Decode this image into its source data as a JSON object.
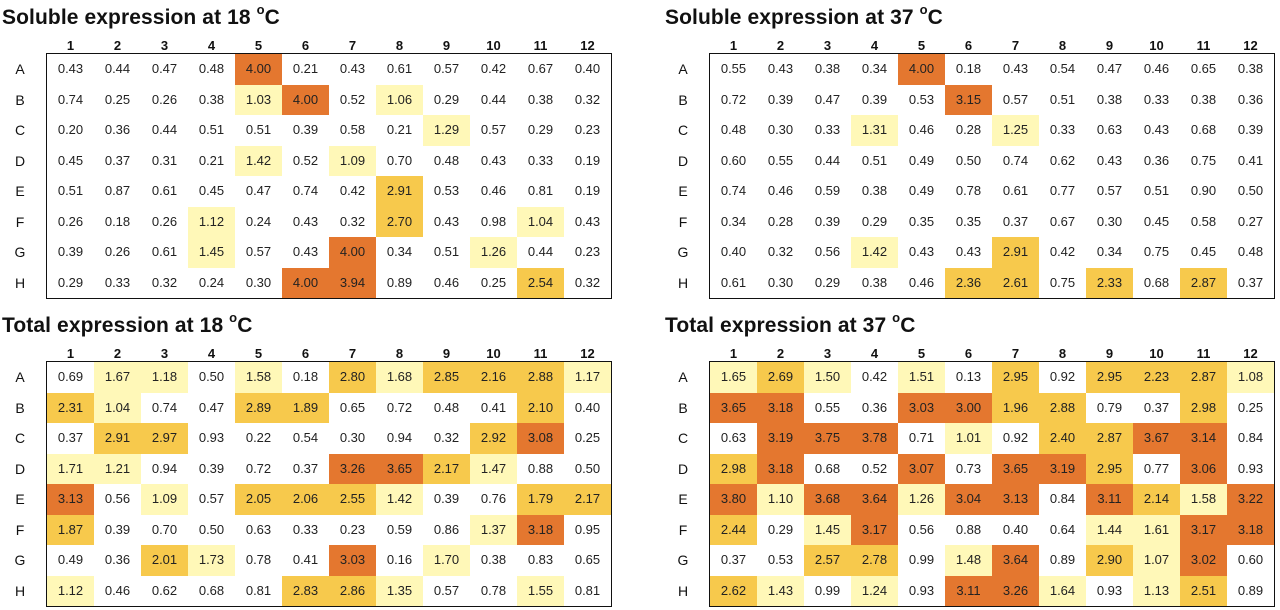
{
  "chart_data": [
    {
      "type": "heatmap",
      "title_main": "Soluble expression at 18",
      "title_deg": "o",
      "title_unit": "C",
      "columns": [
        "1",
        "2",
        "3",
        "4",
        "5",
        "6",
        "7",
        "8",
        "9",
        "10",
        "11",
        "12"
      ],
      "rows": [
        "A",
        "B",
        "C",
        "D",
        "E",
        "F",
        "G",
        "H"
      ],
      "values": [
        [
          "0.43",
          "0.44",
          "0.47",
          "0.48",
          "4.00",
          "0.21",
          "0.43",
          "0.61",
          "0.57",
          "0.42",
          "0.67",
          "0.40"
        ],
        [
          "0.74",
          "0.25",
          "0.26",
          "0.38",
          "1.03",
          "4.00",
          "0.52",
          "1.06",
          "0.29",
          "0.44",
          "0.38",
          "0.32"
        ],
        [
          "0.20",
          "0.36",
          "0.44",
          "0.51",
          "0.51",
          "0.39",
          "0.58",
          "0.21",
          "1.29",
          "0.57",
          "0.29",
          "0.23"
        ],
        [
          "0.45",
          "0.37",
          "0.31",
          "0.21",
          "1.42",
          "0.52",
          "1.09",
          "0.70",
          "0.48",
          "0.43",
          "0.33",
          "0.19"
        ],
        [
          "0.51",
          "0.87",
          "0.61",
          "0.45",
          "0.47",
          "0.74",
          "0.42",
          "2.91",
          "0.53",
          "0.46",
          "0.81",
          "0.19"
        ],
        [
          "0.26",
          "0.18",
          "0.26",
          "1.12",
          "0.24",
          "0.43",
          "0.32",
          "2.70",
          "0.43",
          "0.98",
          "1.04",
          "0.43"
        ],
        [
          "0.39",
          "0.26",
          "0.61",
          "1.45",
          "0.57",
          "0.43",
          "4.00",
          "0.34",
          "0.51",
          "1.26",
          "0.44",
          "0.23"
        ],
        [
          "0.29",
          "0.33",
          "0.32",
          "0.24",
          "0.30",
          "4.00",
          "3.94",
          "0.89",
          "0.46",
          "0.25",
          "2.54",
          "0.32"
        ]
      ]
    },
    {
      "type": "heatmap",
      "title_main": "Soluble expression at 37",
      "title_deg": "o",
      "title_unit": "C",
      "columns": [
        "1",
        "2",
        "3",
        "4",
        "5",
        "6",
        "7",
        "8",
        "9",
        "10",
        "11",
        "12"
      ],
      "rows": [
        "A",
        "B",
        "C",
        "D",
        "E",
        "F",
        "G",
        "H"
      ],
      "values": [
        [
          "0.55",
          "0.43",
          "0.38",
          "0.34",
          "4.00",
          "0.18",
          "0.43",
          "0.54",
          "0.47",
          "0.46",
          "0.65",
          "0.38"
        ],
        [
          "0.72",
          "0.39",
          "0.47",
          "0.39",
          "0.53",
          "3.15",
          "0.57",
          "0.51",
          "0.38",
          "0.33",
          "0.38",
          "0.36"
        ],
        [
          "0.48",
          "0.30",
          "0.33",
          "1.31",
          "0.46",
          "0.28",
          "1.25",
          "0.33",
          "0.63",
          "0.43",
          "0.68",
          "0.39"
        ],
        [
          "0.60",
          "0.55",
          "0.44",
          "0.51",
          "0.49",
          "0.50",
          "0.74",
          "0.62",
          "0.43",
          "0.36",
          "0.75",
          "0.41"
        ],
        [
          "0.74",
          "0.46",
          "0.59",
          "0.38",
          "0.49",
          "0.78",
          "0.61",
          "0.77",
          "0.57",
          "0.51",
          "0.90",
          "0.50"
        ],
        [
          "0.34",
          "0.28",
          "0.39",
          "0.29",
          "0.35",
          "0.35",
          "0.37",
          "0.67",
          "0.30",
          "0.45",
          "0.58",
          "0.27"
        ],
        [
          "0.40",
          "0.32",
          "0.56",
          "1.42",
          "0.43",
          "0.43",
          "2.91",
          "0.42",
          "0.34",
          "0.75",
          "0.45",
          "0.48"
        ],
        [
          "0.61",
          "0.30",
          "0.29",
          "0.38",
          "0.46",
          "2.36",
          "2.61",
          "0.75",
          "2.33",
          "0.68",
          "2.87",
          "0.37"
        ]
      ]
    },
    {
      "type": "heatmap",
      "title_main": "Total expression at 18",
      "title_deg": "o",
      "title_unit": "C",
      "columns": [
        "1",
        "2",
        "3",
        "4",
        "5",
        "6",
        "7",
        "8",
        "9",
        "10",
        "11",
        "12"
      ],
      "rows": [
        "A",
        "B",
        "C",
        "D",
        "E",
        "F",
        "G",
        "H"
      ],
      "values": [
        [
          "0.69",
          "1.67",
          "1.18",
          "0.50",
          "1.58",
          "0.18",
          "2.80",
          "1.68",
          "2.85",
          "2.16",
          "2.88",
          "1.17"
        ],
        [
          "2.31",
          "1.04",
          "0.74",
          "0.47",
          "2.89",
          "1.89",
          "0.65",
          "0.72",
          "0.48",
          "0.41",
          "2.10",
          "0.40"
        ],
        [
          "0.37",
          "2.91",
          "2.97",
          "0.93",
          "0.22",
          "0.54",
          "0.30",
          "0.94",
          "0.32",
          "2.92",
          "3.08",
          "0.25"
        ],
        [
          "1.71",
          "1.21",
          "0.94",
          "0.39",
          "0.72",
          "0.37",
          "3.26",
          "3.65",
          "2.17",
          "1.47",
          "0.88",
          "0.50"
        ],
        [
          "3.13",
          "0.56",
          "1.09",
          "0.57",
          "2.05",
          "2.06",
          "2.55",
          "1.42",
          "0.39",
          "0.76",
          "1.79",
          "2.17"
        ],
        [
          "1.87",
          "0.39",
          "0.70",
          "0.50",
          "0.63",
          "0.33",
          "0.23",
          "0.59",
          "0.86",
          "1.37",
          "3.18",
          "0.95"
        ],
        [
          "0.49",
          "0.36",
          "2.01",
          "1.73",
          "0.78",
          "0.41",
          "3.03",
          "0.16",
          "1.70",
          "0.38",
          "0.83",
          "0.65"
        ],
        [
          "1.12",
          "0.46",
          "0.62",
          "0.68",
          "0.81",
          "2.83",
          "2.86",
          "1.35",
          "0.57",
          "0.78",
          "1.55",
          "0.81"
        ]
      ]
    },
    {
      "type": "heatmap",
      "title_main": "Total expression at 37",
      "title_deg": "o",
      "title_unit": "C",
      "columns": [
        "1",
        "2",
        "3",
        "4",
        "5",
        "6",
        "7",
        "8",
        "9",
        "10",
        "11",
        "12"
      ],
      "rows": [
        "A",
        "B",
        "C",
        "D",
        "E",
        "F",
        "G",
        "H"
      ],
      "values": [
        [
          "1.65",
          "2.69",
          "1.50",
          "0.42",
          "1.51",
          "0.13",
          "2.95",
          "0.92",
          "2.95",
          "2.23",
          "2.87",
          "1.08"
        ],
        [
          "3.65",
          "3.18",
          "0.55",
          "0.36",
          "3.03",
          "3.00",
          "1.96",
          "2.88",
          "0.79",
          "0.37",
          "2.98",
          "0.25"
        ],
        [
          "0.63",
          "3.19",
          "3.75",
          "3.78",
          "0.71",
          "1.01",
          "0.92",
          "2.40",
          "2.87",
          "3.67",
          "3.14",
          "0.84"
        ],
        [
          "2.98",
          "3.18",
          "0.68",
          "0.52",
          "3.07",
          "0.73",
          "3.65",
          "3.19",
          "2.95",
          "0.77",
          "3.06",
          "0.93"
        ],
        [
          "3.80",
          "1.10",
          "3.68",
          "3.64",
          "1.26",
          "3.04",
          "3.13",
          "0.84",
          "3.11",
          "2.14",
          "1.58",
          "3.22"
        ],
        [
          "2.44",
          "0.29",
          "1.45",
          "3.17",
          "0.56",
          "0.88",
          "0.40",
          "0.64",
          "1.44",
          "1.61",
          "3.17",
          "3.18"
        ],
        [
          "0.37",
          "0.53",
          "2.57",
          "2.78",
          "0.99",
          "1.48",
          "3.64",
          "0.89",
          "2.90",
          "1.07",
          "3.02",
          "0.60"
        ],
        [
          "2.62",
          "1.43",
          "0.99",
          "1.24",
          "0.93",
          "3.11",
          "3.26",
          "1.64",
          "0.93",
          "1.13",
          "2.51",
          "0.89"
        ]
      ]
    }
  ],
  "colors": {
    "none": "#ffffff",
    "low": "#fff8b8",
    "mid": "#f7c94c",
    "high": "#e4772f",
    "border": "#111111",
    "text": "#222222"
  }
}
